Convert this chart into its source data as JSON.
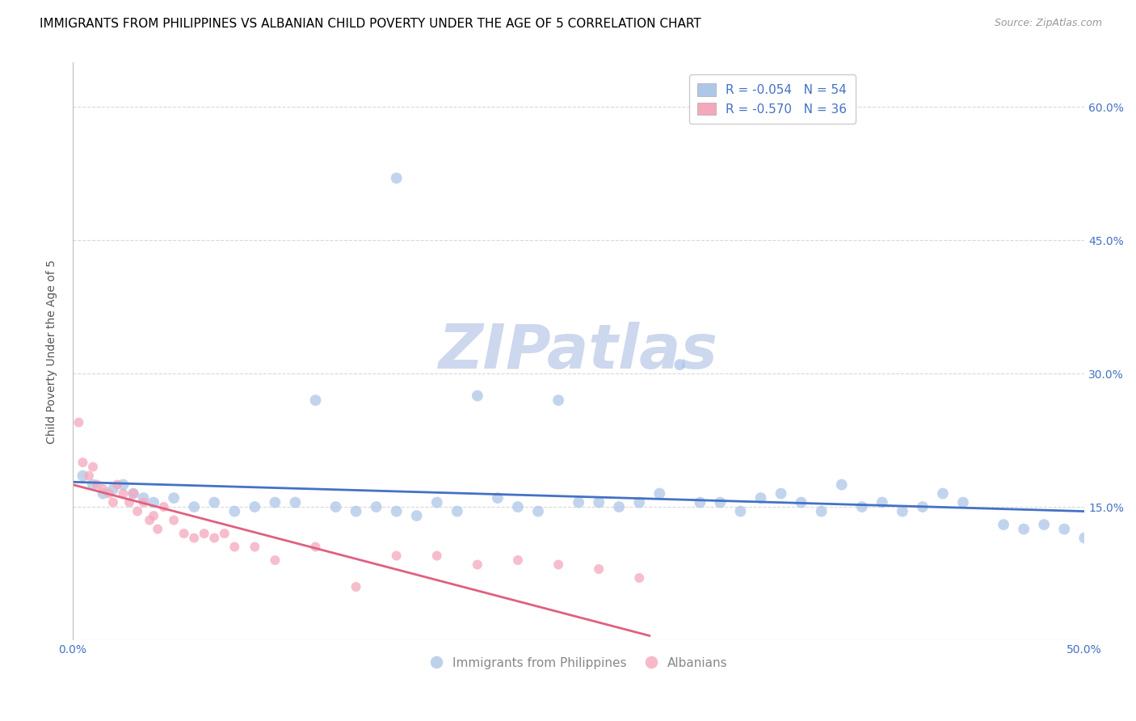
{
  "title": "IMMIGRANTS FROM PHILIPPINES VS ALBANIAN CHILD POVERTY UNDER THE AGE OF 5 CORRELATION CHART",
  "source": "Source: ZipAtlas.com",
  "ylabel": "Child Poverty Under the Age of 5",
  "right_yticks": [
    "60.0%",
    "45.0%",
    "30.0%",
    "15.0%"
  ],
  "right_ytick_vals": [
    0.6,
    0.45,
    0.3,
    0.15
  ],
  "xlim": [
    0.0,
    0.5
  ],
  "ylim": [
    0.0,
    0.65
  ],
  "blue_color": "#aec6e8",
  "pink_color": "#f4a8bc",
  "blue_line_color": "#4472c4",
  "pink_line_color": "#e06080",
  "legend_blue_label": "R = -0.054   N = 54",
  "legend_pink_label": "R = -0.570   N = 36",
  "bottom_legend_blue": "Immigrants from Philippines",
  "bottom_legend_pink": "Albanians",
  "blue_scatter_x": [
    0.005,
    0.01,
    0.015,
    0.02,
    0.025,
    0.03,
    0.035,
    0.04,
    0.05,
    0.06,
    0.07,
    0.08,
    0.09,
    0.1,
    0.11,
    0.12,
    0.13,
    0.14,
    0.15,
    0.16,
    0.17,
    0.18,
    0.19,
    0.2,
    0.21,
    0.22,
    0.23,
    0.24,
    0.25,
    0.26,
    0.27,
    0.28,
    0.29,
    0.3,
    0.31,
    0.32,
    0.33,
    0.34,
    0.35,
    0.36,
    0.37,
    0.38,
    0.39,
    0.4,
    0.41,
    0.42,
    0.43,
    0.44,
    0.46,
    0.47,
    0.48,
    0.49,
    0.5,
    0.16
  ],
  "blue_scatter_y": [
    0.185,
    0.175,
    0.165,
    0.17,
    0.175,
    0.165,
    0.16,
    0.155,
    0.16,
    0.15,
    0.155,
    0.145,
    0.15,
    0.155,
    0.155,
    0.27,
    0.15,
    0.145,
    0.15,
    0.145,
    0.14,
    0.155,
    0.145,
    0.275,
    0.16,
    0.15,
    0.145,
    0.27,
    0.155,
    0.155,
    0.15,
    0.155,
    0.165,
    0.31,
    0.155,
    0.155,
    0.145,
    0.16,
    0.165,
    0.155,
    0.145,
    0.175,
    0.15,
    0.155,
    0.145,
    0.15,
    0.165,
    0.155,
    0.13,
    0.125,
    0.13,
    0.125,
    0.115,
    0.52
  ],
  "pink_scatter_x": [
    0.003,
    0.005,
    0.008,
    0.01,
    0.012,
    0.015,
    0.018,
    0.02,
    0.022,
    0.025,
    0.028,
    0.03,
    0.032,
    0.035,
    0.038,
    0.04,
    0.042,
    0.045,
    0.05,
    0.055,
    0.06,
    0.065,
    0.07,
    0.075,
    0.08,
    0.09,
    0.1,
    0.12,
    0.14,
    0.16,
    0.18,
    0.2,
    0.22,
    0.24,
    0.26,
    0.28
  ],
  "pink_scatter_y": [
    0.245,
    0.2,
    0.185,
    0.195,
    0.175,
    0.17,
    0.165,
    0.155,
    0.175,
    0.165,
    0.155,
    0.165,
    0.145,
    0.155,
    0.135,
    0.14,
    0.125,
    0.15,
    0.135,
    0.12,
    0.115,
    0.12,
    0.115,
    0.12,
    0.105,
    0.105,
    0.09,
    0.105,
    0.06,
    0.095,
    0.095,
    0.085,
    0.09,
    0.085,
    0.08,
    0.07
  ],
  "blue_trend_x": [
    0.0,
    0.5
  ],
  "blue_trend_y": [
    0.178,
    0.145
  ],
  "pink_trend_x": [
    0.0,
    0.285
  ],
  "pink_trend_y": [
    0.175,
    0.005
  ],
  "marker_size_blue": 100,
  "marker_size_pink": 75,
  "title_fontsize": 11,
  "axis_label_fontsize": 10,
  "tick_fontsize": 10,
  "watermark_text": "ZIPatlas",
  "watermark_color": "#cdd8ee",
  "watermark_fontsize": 55,
  "grid_color": "#d8d8d8",
  "xtick_left_label": "0.0%",
  "xtick_right_label": "50.0%"
}
